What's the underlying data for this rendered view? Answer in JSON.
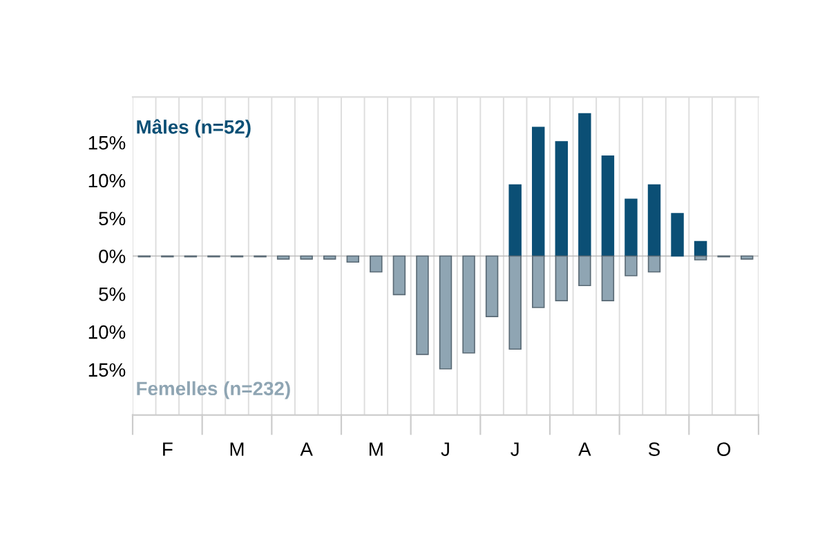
{
  "chart_data": {
    "type": "bar",
    "categories": [
      null,
      "F",
      null,
      null,
      "M",
      null,
      null,
      "A",
      null,
      null,
      "M",
      null,
      null,
      "J",
      null,
      null,
      "J",
      null,
      null,
      "A",
      null,
      null,
      "S",
      null,
      null,
      "O",
      null
    ],
    "series": [
      {
        "name": "Mâles (n=52)",
        "color": "#0b4f75",
        "values": [
          null,
          null,
          null,
          null,
          null,
          null,
          null,
          null,
          null,
          null,
          null,
          null,
          null,
          null,
          null,
          null,
          9.4,
          17.0,
          15.1,
          18.8,
          13.2,
          7.5,
          9.4,
          5.6,
          1.9,
          null,
          null
        ]
      },
      {
        "name": "Femelles (n=232)",
        "color": "#8fa5b3",
        "values": [
          -0.1,
          -0.1,
          -0.1,
          -0.1,
          -0.1,
          -0.1,
          -0.4,
          -0.4,
          -0.4,
          -0.8,
          -2.1,
          -5.1,
          -13.0,
          -14.9,
          -12.8,
          -8.0,
          -12.3,
          -6.8,
          -5.9,
          -3.9,
          -5.9,
          -2.6,
          -2.1,
          null,
          -0.5,
          -0.1,
          -0.4
        ]
      }
    ],
    "ylim": [
      -21,
      21
    ],
    "yticks": [
      {
        "value": 15,
        "label": "15%"
      },
      {
        "value": 10,
        "label": "10%"
      },
      {
        "value": 5,
        "label": "5%"
      },
      {
        "value": 0,
        "label": "0%"
      },
      {
        "value": -5,
        "label": "5%"
      },
      {
        "value": -10,
        "label": "10%"
      },
      {
        "value": -15,
        "label": "15%"
      }
    ],
    "grid": "x",
    "legend": false
  }
}
